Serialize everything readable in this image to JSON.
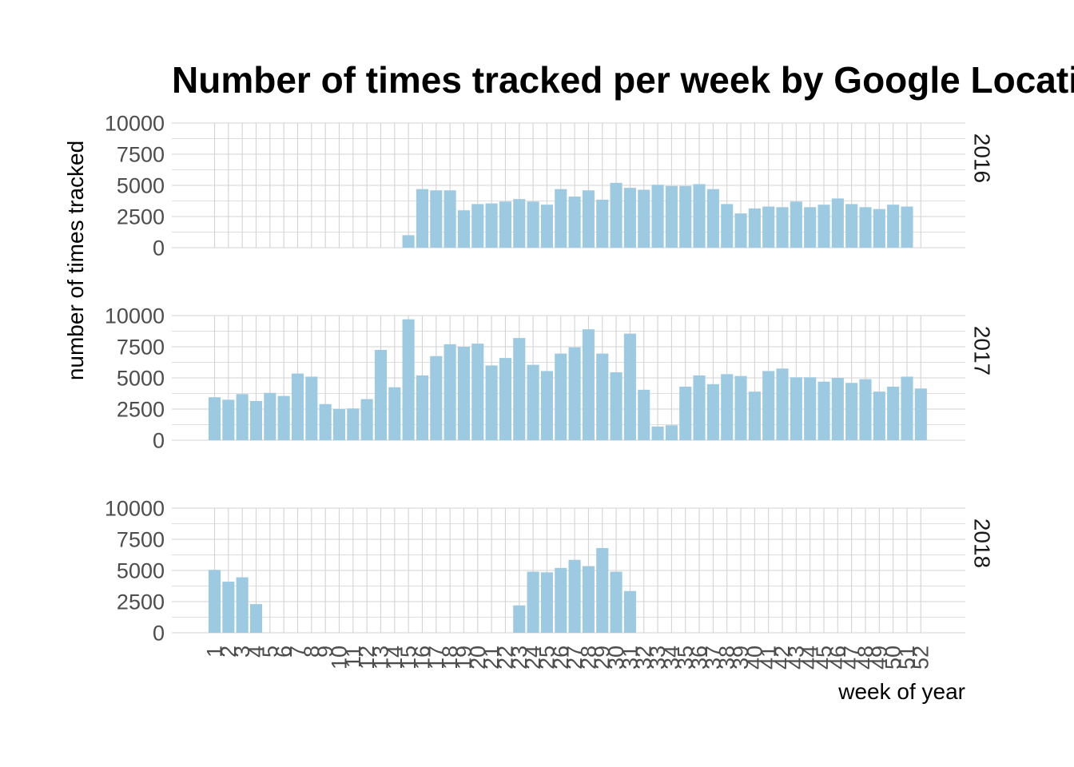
{
  "chart_data": {
    "type": "bar",
    "title": "Number of times tracked per week by Google Location",
    "xlabel": "week of year",
    "ylabel": "number of times tracked",
    "x": [
      1,
      2,
      3,
      4,
      5,
      6,
      7,
      8,
      9,
      10,
      11,
      12,
      13,
      14,
      15,
      16,
      17,
      18,
      19,
      20,
      21,
      22,
      23,
      24,
      25,
      26,
      27,
      28,
      29,
      30,
      31,
      32,
      33,
      34,
      35,
      36,
      37,
      38,
      39,
      40,
      41,
      42,
      43,
      44,
      45,
      46,
      47,
      48,
      49,
      50,
      51,
      52
    ],
    "ylim": [
      0,
      10000
    ],
    "yticks": [
      0,
      2500,
      5000,
      7500,
      10000
    ],
    "grid": true,
    "bar_color": "#9ecae1",
    "facets": [
      {
        "label": "2016",
        "values": [
          null,
          null,
          null,
          null,
          null,
          null,
          null,
          null,
          null,
          null,
          null,
          null,
          null,
          null,
          1000,
          4700,
          4600,
          4600,
          3000,
          3500,
          3550,
          3700,
          3900,
          3700,
          3450,
          4700,
          4100,
          4600,
          3850,
          5200,
          4800,
          4650,
          5050,
          4950,
          4950,
          5100,
          4700,
          3500,
          2750,
          3150,
          3300,
          3250,
          3700,
          3250,
          3450,
          3950,
          3500,
          3250,
          3100,
          3450,
          3300,
          null
        ]
      },
      {
        "label": "2017",
        "values": [
          3450,
          3250,
          3700,
          3150,
          3800,
          3550,
          5350,
          5100,
          2900,
          2500,
          2550,
          3300,
          7250,
          4250,
          9700,
          5200,
          6750,
          7700,
          7500,
          7750,
          6000,
          6600,
          8200,
          6050,
          5550,
          6950,
          7450,
          8900,
          6950,
          5450,
          8550,
          4050,
          1100,
          1200,
          4300,
          5200,
          4500,
          5300,
          5150,
          3900,
          5550,
          5750,
          5050,
          5050,
          4700,
          5000,
          4600,
          4900,
          3900,
          4300,
          5100,
          4150
        ]
      },
      {
        "label": "2018",
        "values": [
          5050,
          4100,
          4450,
          2300,
          null,
          null,
          null,
          null,
          null,
          null,
          null,
          null,
          null,
          null,
          null,
          null,
          null,
          null,
          null,
          null,
          null,
          null,
          2200,
          4900,
          4850,
          5200,
          5850,
          5350,
          6800,
          4900,
          3350,
          null,
          null,
          null,
          null,
          null,
          null,
          null,
          null,
          null,
          null,
          null,
          null,
          null,
          null,
          null,
          null,
          null,
          null,
          null,
          null,
          null
        ]
      }
    ]
  }
}
